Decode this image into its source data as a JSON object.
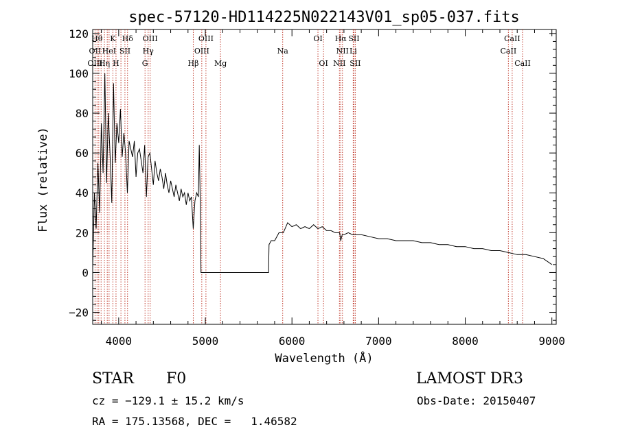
{
  "chart_data": {
    "type": "line",
    "title": "spec-57120-HD114225N022143V01_sp05-037.fits",
    "xlabel": "Wavelength (Å)",
    "ylabel": "Flux (relative)",
    "xlim": [
      3700,
      9050
    ],
    "ylim": [
      -26,
      122
    ],
    "xticks": [
      4000,
      5000,
      6000,
      7000,
      8000,
      9000
    ],
    "xtick_labels": [
      "4000",
      "5000",
      "6000",
      "7000",
      "8000",
      "9000"
    ],
    "yticks": [
      -20,
      0,
      20,
      40,
      60,
      80,
      100,
      120
    ],
    "ytick_labels": [
      "−20",
      "0",
      "20",
      "40",
      "60",
      "80",
      "100",
      "120"
    ],
    "series": [
      {
        "name": "spectrum",
        "color": "#000000",
        "x": [
          3700,
          3720,
          3740,
          3760,
          3780,
          3800,
          3820,
          3840,
          3860,
          3880,
          3900,
          3920,
          3940,
          3960,
          3980,
          4000,
          4020,
          4040,
          4060,
          4080,
          4100,
          4120,
          4140,
          4160,
          4180,
          4200,
          4220,
          4240,
          4260,
          4280,
          4300,
          4320,
          4340,
          4360,
          4380,
          4400,
          4420,
          4440,
          4460,
          4480,
          4500,
          4520,
          4540,
          4560,
          4580,
          4600,
          4620,
          4640,
          4660,
          4680,
          4700,
          4720,
          4740,
          4760,
          4780,
          4800,
          4820,
          4840,
          4860,
          4880,
          4900,
          4920,
          4930,
          4940,
          4950,
          5000,
          5500,
          5730,
          5735,
          5760,
          5800,
          5850,
          5900,
          5950,
          6000,
          6050,
          6100,
          6150,
          6200,
          6250,
          6300,
          6350,
          6400,
          6450,
          6500,
          6550,
          6563,
          6580,
          6600,
          6650,
          6700,
          6750,
          6800,
          6900,
          7000,
          7100,
          7200,
          7300,
          7400,
          7500,
          7600,
          7700,
          7800,
          7900,
          8000,
          8100,
          8200,
          8300,
          8400,
          8500,
          8600,
          8700,
          8800,
          8900,
          9000
        ],
        "y": [
          2,
          40,
          22,
          55,
          30,
          75,
          50,
          100,
          45,
          80,
          60,
          35,
          95,
          55,
          75,
          65,
          82,
          58,
          70,
          60,
          40,
          66,
          62,
          58,
          66,
          48,
          60,
          62,
          56,
          50,
          64,
          38,
          58,
          60,
          52,
          44,
          56,
          50,
          46,
          52,
          48,
          42,
          50,
          44,
          40,
          46,
          42,
          38,
          44,
          40,
          36,
          42,
          38,
          40,
          34,
          40,
          36,
          38,
          22,
          36,
          40,
          38,
          64,
          40,
          0,
          0,
          0,
          0,
          14,
          16,
          16,
          20,
          20,
          25,
          23,
          24,
          22,
          23,
          22,
          24,
          22,
          23,
          21,
          21,
          20,
          20,
          16,
          19,
          19,
          20,
          19,
          19,
          19,
          18,
          17,
          17,
          16,
          16,
          16,
          15,
          15,
          14,
          14,
          13,
          13,
          12,
          12,
          11,
          11,
          10,
          9,
          9,
          8,
          7,
          4
        ]
      }
    ],
    "lines": {
      "color": "#c0392b",
      "x": [
        3727,
        3750,
        3770,
        3797,
        3835,
        3868,
        3889,
        3933,
        3969,
        4026,
        4072,
        4102,
        4304,
        4340,
        4363,
        4861,
        4959,
        5007,
        5175,
        5893,
        6300,
        6364,
        6548,
        6563,
        6583,
        6707,
        6716,
        6731,
        8498,
        8542,
        8662
      ],
      "labels": [
        {
          "text": "Hθ",
          "x": 3750,
          "row": 0
        },
        {
          "text": "K",
          "x": 3933,
          "row": 0
        },
        {
          "text": "Hδ",
          "x": 4102,
          "row": 0
        },
        {
          "text": "OIII",
          "x": 4363,
          "row": 0
        },
        {
          "text": "OIII",
          "x": 5007,
          "row": 0
        },
        {
          "text": "OI",
          "x": 6300,
          "row": 0
        },
        {
          "text": "Hα",
          "x": 6563,
          "row": 0
        },
        {
          "text": "SII",
          "x": 6716,
          "row": 0
        },
        {
          "text": "CaII",
          "x": 8542,
          "row": 0
        },
        {
          "text": "OII",
          "x": 3727,
          "row": 1
        },
        {
          "text": "HeI",
          "x": 3889,
          "row": 1
        },
        {
          "text": "SII",
          "x": 4072,
          "row": 1
        },
        {
          "text": "Hγ",
          "x": 4340,
          "row": 1
        },
        {
          "text": "OIII",
          "x": 4959,
          "row": 1
        },
        {
          "text": "Na",
          "x": 5893,
          "row": 1
        },
        {
          "text": "NII",
          "x": 6583,
          "row": 1
        },
        {
          "text": "Li",
          "x": 6707,
          "row": 1
        },
        {
          "text": "CaII",
          "x": 8498,
          "row": 1
        },
        {
          "text": "OIII",
          "x": 3727,
          "row": 2
        },
        {
          "text": "Hη",
          "x": 3835,
          "row": 2
        },
        {
          "text": "H",
          "x": 3969,
          "row": 2
        },
        {
          "text": "G",
          "x": 4304,
          "row": 2
        },
        {
          "text": "Hβ",
          "x": 4861,
          "row": 2
        },
        {
          "text": "Mg",
          "x": 5175,
          "row": 2
        },
        {
          "text": "OI",
          "x": 6364,
          "row": 2
        },
        {
          "text": "NII",
          "x": 6548,
          "row": 2
        },
        {
          "text": "SII",
          "x": 6731,
          "row": 2
        },
        {
          "text": "CaII",
          "x": 8662,
          "row": 2
        }
      ]
    }
  },
  "info": {
    "object_class": "STAR",
    "subclass": "F0",
    "survey": "LAMOST DR3",
    "cz": "cz = −129.1 ± 15.2 km/s",
    "obs_date": "Obs-Date: 20150407",
    "coords": "RA = 175.13568, DEC =   1.46582"
  }
}
